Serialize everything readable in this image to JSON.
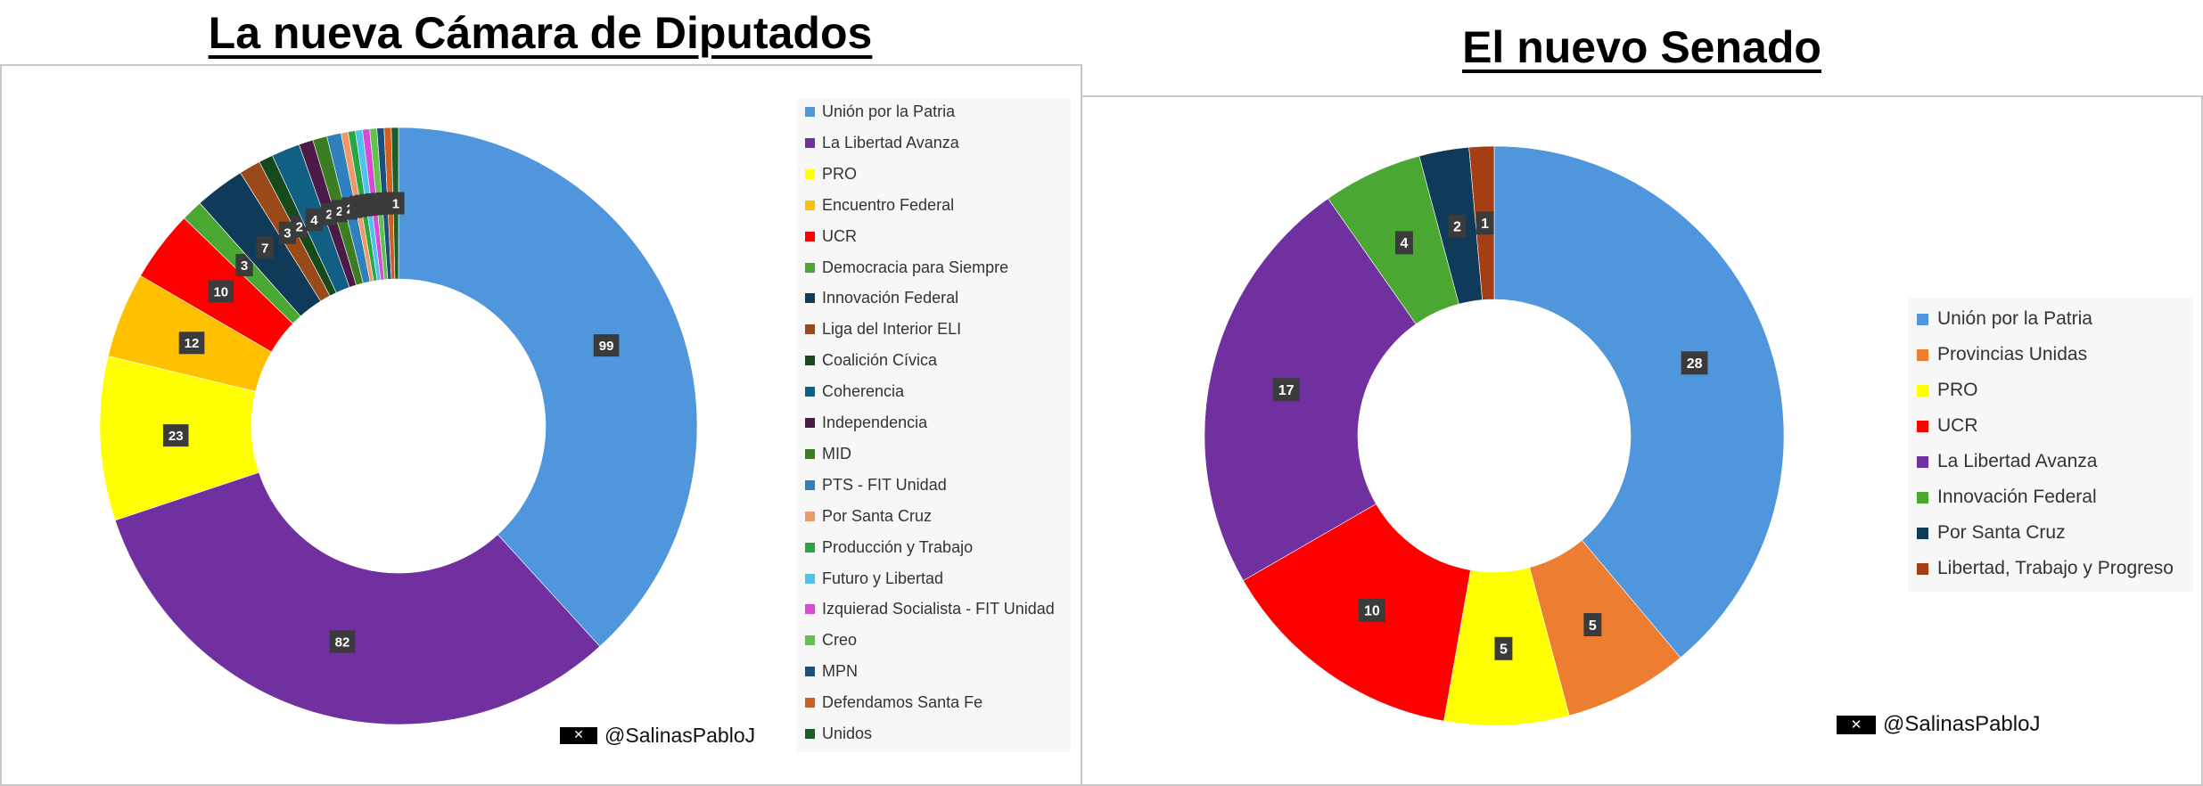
{
  "chart_data": [
    {
      "type": "pie",
      "donut": true,
      "title": "La nueva Cámara de Diputados",
      "legend_position": "right",
      "show_all_labels": true,
      "categories": [
        "Unión por la Patria",
        "La Libertad Avanza",
        "PRO",
        "Encuentro Federal",
        "UCR",
        "Democracia para Siempre",
        "Innovación Federal",
        "Liga del Interior ELI",
        "Coalición Cívica",
        "Coherencia",
        "Independencia",
        "MID",
        "PTS - FIT Unidad",
        "Por Santa Cruz",
        "Producción y Trabajo",
        "Futuro y Libertad",
        "Izquierad Socialista - FIT Unidad",
        "Creo",
        "MPN",
        "Defendamos Santa Fe",
        "Unidos"
      ],
      "values": [
        99,
        82,
        23,
        12,
        10,
        3,
        7,
        3,
        2,
        4,
        2,
        2,
        2,
        1,
        1,
        1,
        1,
        1,
        1,
        1,
        1
      ],
      "colors": [
        "#5096dc",
        "#7030a0",
        "#ffff00",
        "#ffc000",
        "#ff0000",
        "#4aa832",
        "#0f3a5a",
        "#9a4a18",
        "#174a1b",
        "#125f84",
        "#4b1a48",
        "#3d7d22",
        "#2f80bd",
        "#f19a68",
        "#28a646",
        "#4fc3ee",
        "#d94ad4",
        "#62c34c",
        "#1b4f7e",
        "#d25f22",
        "#1c5e2b"
      ],
      "watermark": "@SalinasPabloJ"
    },
    {
      "type": "pie",
      "donut": true,
      "title": "El nuevo Senado",
      "legend_position": "right",
      "show_all_labels": true,
      "categories": [
        "Unión por la Patria",
        "Provincias Unidas",
        "PRO",
        "UCR",
        "La Libertad Avanza",
        "Innovación Federal",
        "Por Santa Cruz",
        "Libertad, Trabajo y Progreso"
      ],
      "values": [
        28,
        5,
        5,
        10,
        17,
        4,
        2,
        1
      ],
      "colors": [
        "#5096dc",
        "#ed7d31",
        "#ffff00",
        "#ff0000",
        "#7030a0",
        "#4aa832",
        "#0f3a5a",
        "#a63e14"
      ],
      "watermark": "@SalinasPabloJ"
    }
  ]
}
